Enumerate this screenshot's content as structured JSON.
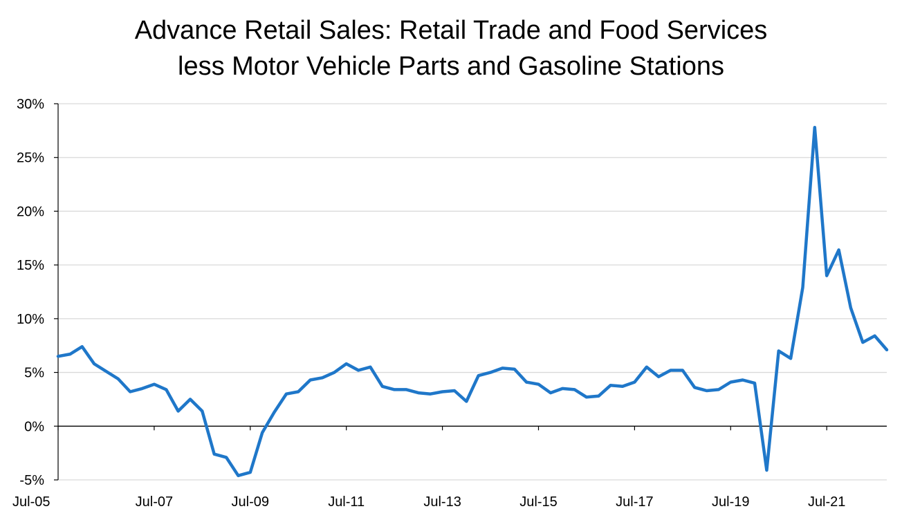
{
  "chart_data": {
    "type": "line",
    "title_lines": [
      "Advance Retail Sales: Retail Trade and Food Services",
      "less Motor Vehicle Parts and Gasoline Stations"
    ],
    "xlabel": "",
    "ylabel": "",
    "x_tick_labels": [
      "Jul-05",
      "Jul-07",
      "Jul-09",
      "Jul-11",
      "Jul-13",
      "Jul-15",
      "Jul-17",
      "Jul-19",
      "Jul-21"
    ],
    "y_tick_labels": [
      "30%",
      "25%",
      "20%",
      "15%",
      "10%",
      "5%",
      "0%",
      "-5%"
    ],
    "y_ticks": [
      30,
      25,
      20,
      15,
      10,
      5,
      0,
      -5
    ],
    "ylim": [
      -5,
      30
    ],
    "grid": "horizontal",
    "legend": "none",
    "line_color": "#1f77c9",
    "series": [
      {
        "values": [
          6.5,
          6.7,
          7.4,
          5.8,
          5.1,
          4.4,
          3.2,
          3.5,
          3.9,
          3.4,
          1.4,
          2.5,
          1.4,
          -2.6,
          -2.9,
          -4.6,
          -4.3,
          -0.6,
          1.3,
          3.0,
          3.2,
          4.3,
          4.5,
          5.0,
          5.8,
          5.2,
          5.5,
          3.7,
          3.4,
          3.4,
          3.1,
          3.0,
          3.2,
          3.3,
          2.3,
          4.7,
          5.0,
          5.4,
          5.3,
          4.1,
          3.9,
          3.1,
          3.5,
          3.4,
          2.7,
          2.8,
          3.8,
          3.7,
          4.1,
          5.5,
          4.6,
          5.2,
          5.2,
          3.6,
          3.3,
          3.4,
          4.1,
          4.3,
          4.0,
          -4.1,
          7.0,
          6.3,
          12.9,
          27.8,
          14.0,
          16.4,
          11.0,
          7.8,
          8.4,
          7.1
        ]
      }
    ]
  }
}
